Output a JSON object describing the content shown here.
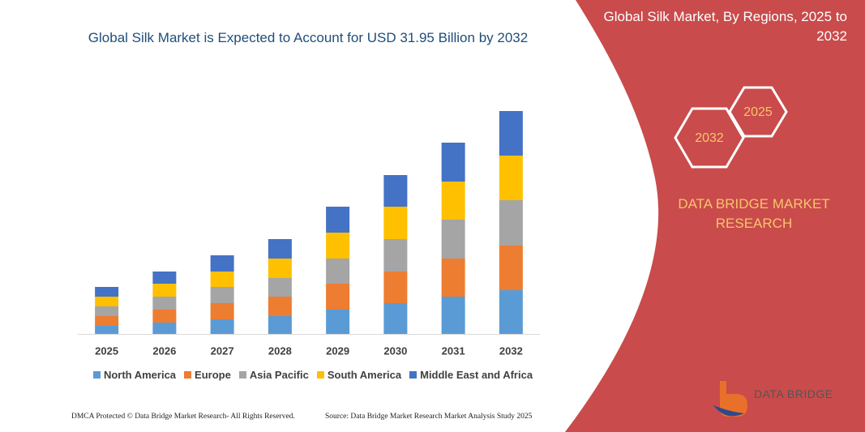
{
  "chart_data": {
    "type": "bar",
    "stacked": true,
    "title": "Global Silk Market is Expected to Account for USD 31.95 Billion by 2032",
    "categories": [
      "2025",
      "2026",
      "2027",
      "2028",
      "2029",
      "2030",
      "2031",
      "2032"
    ],
    "series": [
      {
        "name": "North America",
        "color": "#5b9bd5",
        "values": [
          10,
          14,
          18,
          22,
          30,
          38,
          46,
          54
        ]
      },
      {
        "name": "Europe",
        "color": "#ed7d31",
        "values": [
          12,
          16,
          20,
          24,
          32,
          39,
          47,
          55
        ]
      },
      {
        "name": "Asia Pacific",
        "color": "#a5a5a5",
        "values": [
          12,
          16,
          20,
          23,
          31,
          40,
          48,
          56
        ]
      },
      {
        "name": "South America",
        "color": "#ffc000",
        "values": [
          12,
          16,
          19,
          24,
          32,
          40,
          47,
          55
        ]
      },
      {
        "name": "Middle East and Africa",
        "color": "#4472c4",
        "values": [
          12,
          15,
          20,
          24,
          32,
          39,
          48,
          55
        ]
      }
    ]
  },
  "panel": {
    "title": "Global Silk Market, By Regions, 2025 to 2032",
    "hex_labels": [
      "2025",
      "2032"
    ],
    "brand": "DATA BRIDGE MARKET RESEARCH"
  },
  "logo": {
    "name": "DATA BRIDGE"
  },
  "footer": {
    "left": "DMCA Protected © Data Bridge Market Research- All Rights Reserved.",
    "right": "Source: Data Bridge Market Research Market Analysis Study 2025"
  }
}
